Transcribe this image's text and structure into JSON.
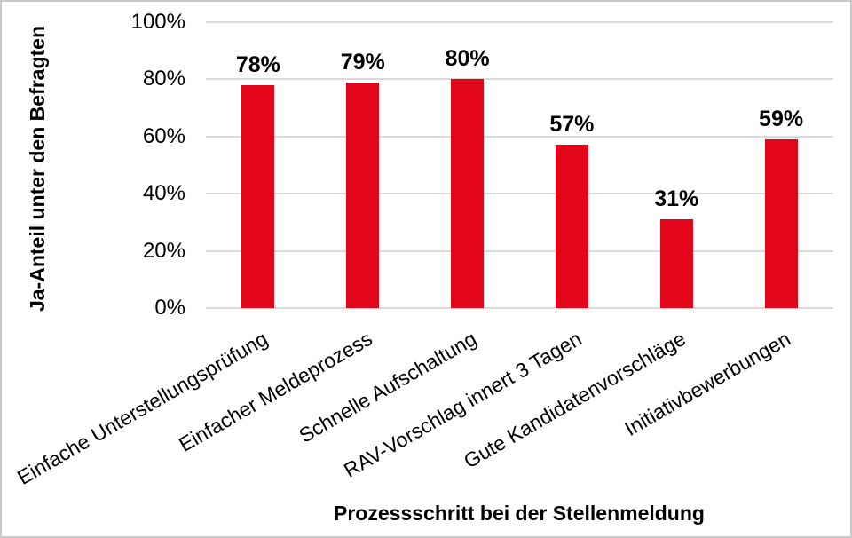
{
  "chart_data": {
    "type": "bar",
    "title": "",
    "categories": [
      "Einfache Unterstellungsprüfung",
      "Einfacher Meldeprozess",
      "Schnelle Aufschaltung",
      "RAV-Vorschlag innert 3 Tagen",
      "Gute Kandidatenvorschläge",
      "Initiativbewerbungen"
    ],
    "values": [
      78,
      79,
      80,
      57,
      31,
      59
    ],
    "value_labels": [
      "78%",
      "79%",
      "80%",
      "57%",
      "31%",
      "59%"
    ],
    "xlabel": "Prozessschritt bei der Stellenmeldung",
    "ylabel": "Ja-Anteil unter den Befragten",
    "ylim": [
      0,
      100
    ],
    "yticks": [
      0,
      20,
      40,
      60,
      80,
      100
    ],
    "ytick_labels": [
      "0%",
      "20%",
      "40%",
      "60%",
      "80%",
      "100%"
    ],
    "grid": true,
    "legend": "none",
    "colors": {
      "bar": "#e30519",
      "gridline": "#dadada",
      "text": "#000000",
      "border": "#c9c9c9",
      "background": "#ffffff"
    },
    "category_label_rotation_deg": -30
  }
}
